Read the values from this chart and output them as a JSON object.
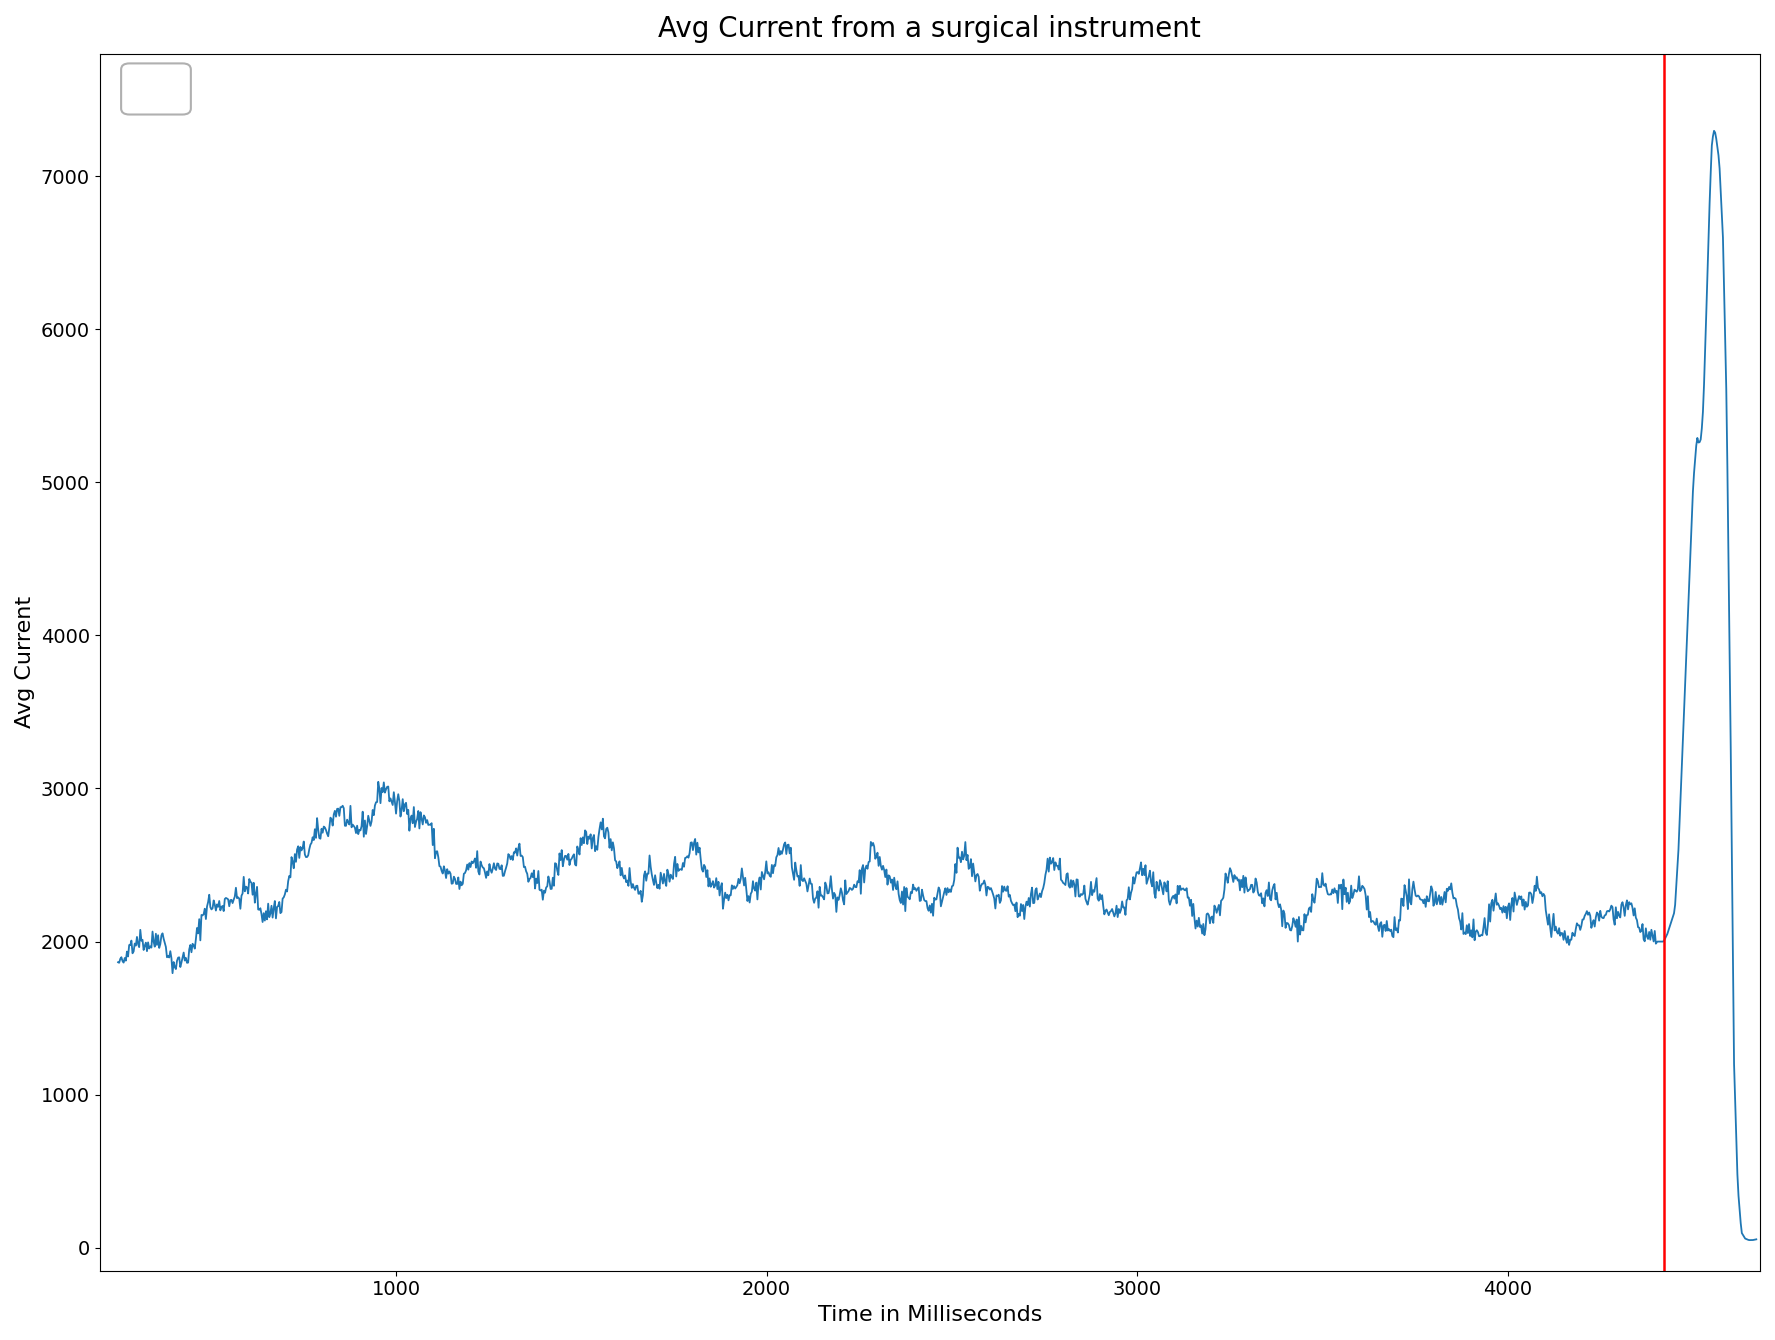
{
  "title": "Avg Current from a surgical instrument",
  "xlabel": "Time in Milliseconds",
  "ylabel": "Avg Current",
  "line_color": "#1f77b4",
  "vline_color": "red",
  "vline_x": 4420,
  "background_color": "white",
  "xlim": [
    200,
    4680
  ],
  "ylim": [
    -150,
    7800
  ],
  "yticks": [
    0,
    1000,
    2000,
    3000,
    4000,
    5000,
    6000,
    7000
  ],
  "xticks": [
    1000,
    2000,
    3000,
    4000
  ],
  "title_fontsize": 20,
  "label_fontsize": 16,
  "tick_fontsize": 14,
  "seed": 42
}
